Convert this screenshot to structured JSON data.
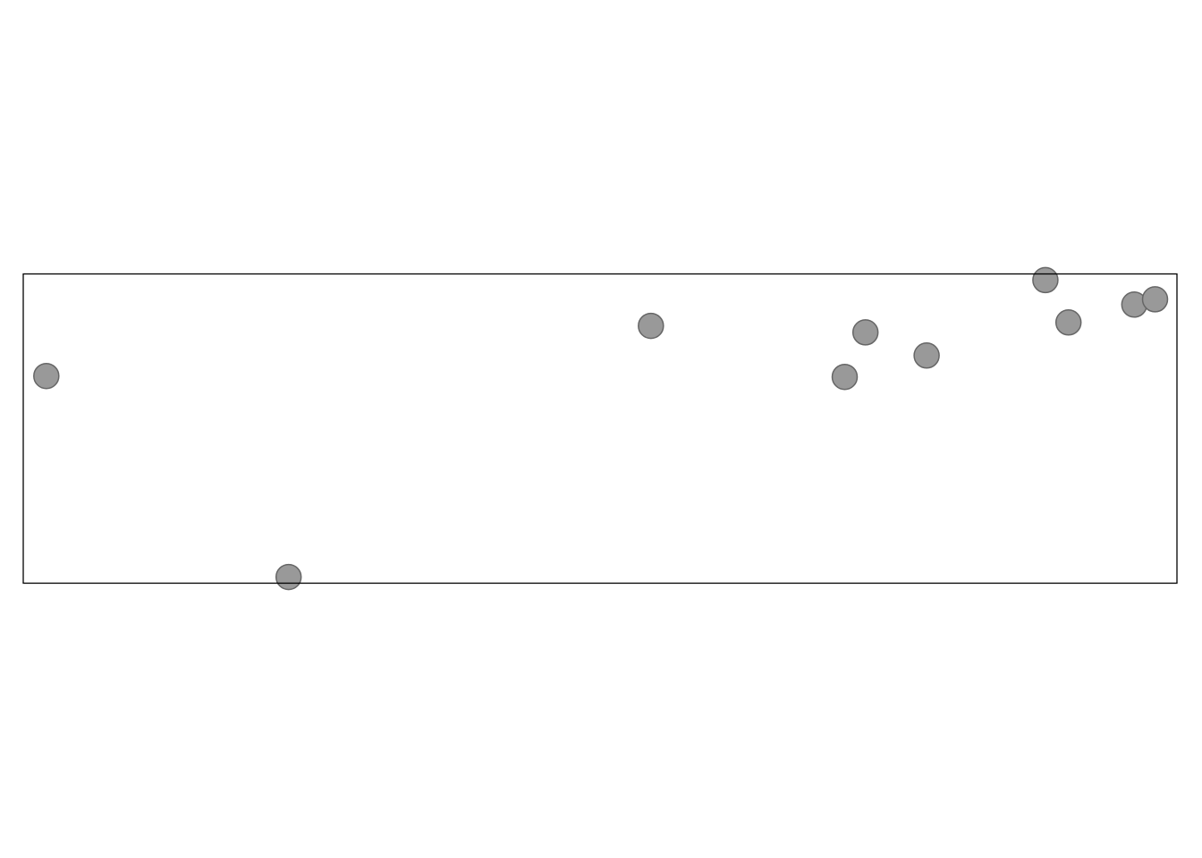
{
  "chart_data": {
    "type": "scatter",
    "title": "",
    "xlabel": "",
    "ylabel": "",
    "grid": false,
    "axes_visible": false,
    "xlim": [
      0,
      100
    ],
    "ylim": [
      0,
      100
    ],
    "colors": {
      "point_fill": "#999999",
      "point_stroke": "#666666",
      "frame": "#000000",
      "background": "#ffffff"
    },
    "series": [
      {
        "points": [
          {
            "x": 2,
            "y": 67
          },
          {
            "x": 23,
            "y": 2
          },
          {
            "x": 54.4,
            "y": 83.2
          },
          {
            "x": 71.2,
            "y": 66.7
          },
          {
            "x": 73,
            "y": 81.1
          },
          {
            "x": 78.3,
            "y": 73.6
          },
          {
            "x": 88.6,
            "y": 98
          },
          {
            "x": 90.6,
            "y": 84.3
          },
          {
            "x": 96.3,
            "y": 90.1
          },
          {
            "x": 98.1,
            "y": 91.8
          }
        ]
      }
    ]
  }
}
